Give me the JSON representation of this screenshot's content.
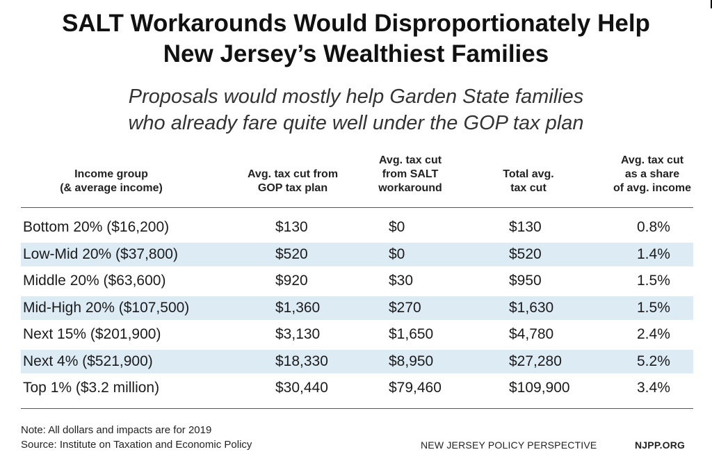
{
  "chart_data": {
    "type": "table",
    "title_lines": [
      "SALT Workarounds Would Disproportionately Help",
      "New Jersey’s Wealthiest Families"
    ],
    "subtitle_lines": [
      "Proposals would mostly help Garden State families",
      "who already fare quite well under the GOP tax plan"
    ],
    "columns": [
      "Income group\n(& average income)",
      "Avg. tax cut from\nGOP tax plan",
      "Avg. tax cut\nfrom SALT\nworkaround",
      "Total avg.\ntax cut",
      "Avg. tax cut\nas a share\nof avg. income"
    ],
    "rows": [
      [
        "Bottom 20% ($16,200)",
        "$130",
        "$0",
        "$130",
        "0.8%"
      ],
      [
        "Low-Mid 20% ($37,800)",
        "$520",
        "$0",
        "$520",
        "1.4%"
      ],
      [
        "Middle 20% ($63,600)",
        "$920",
        "$30",
        "$950",
        "1.5%"
      ],
      [
        "Mid-High 20% ($107,500)",
        "$1,360",
        "$270",
        "$1,630",
        "1.5%"
      ],
      [
        "Next 15% ($201,900)",
        "$3,130",
        "$1,650",
        "$4,780",
        "2.4%"
      ],
      [
        "Next 4% ($521,900)",
        "$18,330",
        "$8,950",
        "$27,280",
        "5.2%"
      ],
      [
        "Top 1% ($3.2 million)",
        "$30,440",
        "$79,460",
        "$109,900",
        "3.4%"
      ]
    ],
    "row_shading": "alternating",
    "shade_color": "#dcebf4"
  },
  "footer": {
    "note": "Note: All dollars and impacts are for 2019",
    "source": "Source: Institute on Taxation and Economic Policy",
    "org_name": "NEW JERSEY POLICY PERSPECTIVE",
    "org_url": "NJPP.ORG"
  }
}
